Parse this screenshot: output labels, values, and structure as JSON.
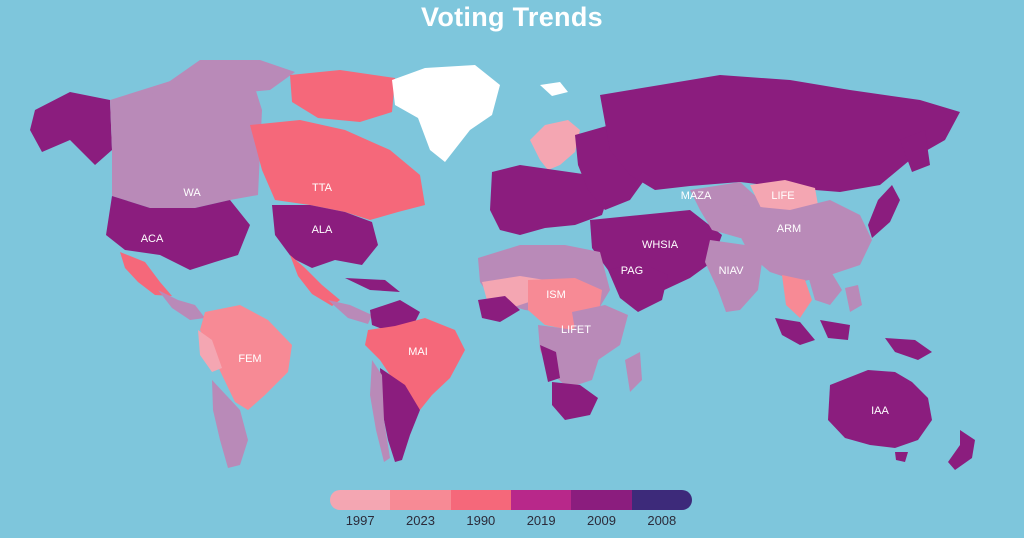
{
  "map": {
    "title": "Voting Trends",
    "colors": {
      "ocean": "#7ec6dc",
      "light_pink": "#f4a6b2",
      "pink": "#f78a95",
      "coral": "#f5687a",
      "lavender": "#b98ab8",
      "magenta": "#a0227f",
      "purple": "#8b1d7e",
      "navy": "#3d2a7a",
      "white": "#ffffff"
    },
    "region_labels": [
      "WA",
      "ACA",
      "TTA",
      "ALA",
      "FEM",
      "MAI",
      "ISM",
      "LIFET",
      "PAG",
      "WHSIA",
      "MAZA",
      "LIFE",
      "ARM",
      "NIAV",
      "IAA"
    ],
    "legend": {
      "labels": [
        "1997",
        "2023",
        "1990",
        "2019",
        "2009",
        "2008"
      ],
      "colors": [
        "#f4a6b2",
        "#f78a95",
        "#f5687a",
        "#b8288a",
        "#8b1d7e",
        "#3d2a7a"
      ]
    }
  }
}
